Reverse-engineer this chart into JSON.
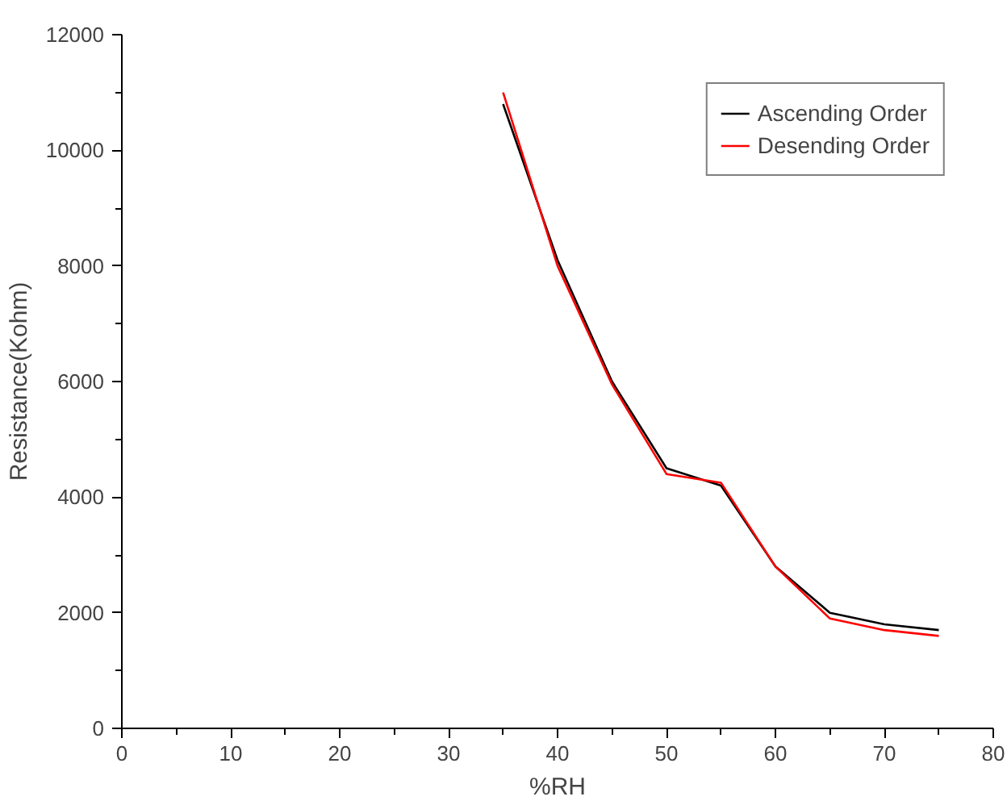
{
  "chart_data": {
    "type": "line",
    "xlabel": "%RH",
    "ylabel": "Resistance(Kohm)",
    "x": [
      35,
      40,
      45,
      50,
      55,
      60,
      65,
      70,
      75
    ],
    "series": [
      {
        "name": "Ascending Order",
        "color": "#000000",
        "values": [
          10800,
          8100,
          6000,
          4500,
          4200,
          2800,
          2000,
          1800,
          1700
        ]
      },
      {
        "name": "Desending Order",
        "color": "#ff0000",
        "values": [
          11000,
          8000,
          5950,
          4400,
          4250,
          2800,
          1900,
          1700,
          1600
        ]
      }
    ],
    "xlim": [
      0,
      80
    ],
    "xticks": [
      0,
      10,
      20,
      30,
      40,
      50,
      60,
      70,
      80
    ],
    "ylim": [
      0,
      12000
    ],
    "yticks": [
      0,
      2000,
      4000,
      6000,
      8000,
      10000,
      12000
    ],
    "grid": false,
    "legend": "top right",
    "marker": "none",
    "line_style": "solid"
  }
}
